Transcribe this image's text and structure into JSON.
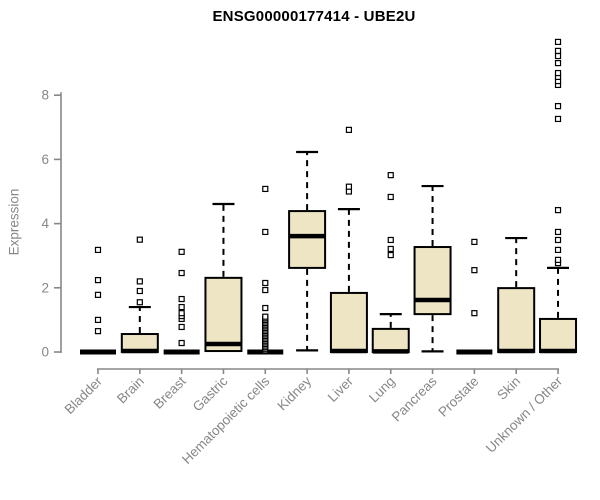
{
  "header": {
    "title": "ENSG00000177414 - UBE2U"
  },
  "chart_data": {
    "type": "boxplot",
    "title": "ENSG00000177414 - UBE2U",
    "xlabel": "",
    "ylabel": "Expression",
    "ylim": [
      0,
      9.7
    ],
    "yticks": [
      0,
      2,
      4,
      6,
      8
    ],
    "grid": false,
    "legend": "none",
    "colors": {
      "box_fill": "#EEE5C5",
      "box_border": "#000000",
      "median": "#000000",
      "axis": "#878787",
      "title": "#000000",
      "outlier_fill": "#ffffff"
    },
    "categories": [
      "Bladder",
      "Brain",
      "Breast",
      "Gastric",
      "Hematopoietic cells",
      "Kidney",
      "Liver",
      "Lung",
      "Pancreas",
      "Prostate",
      "Skin",
      "Unknown / Other"
    ],
    "series": [
      {
        "category": "Bladder",
        "collapsed": true,
        "min": 0,
        "q1": 0,
        "median": 0,
        "q3": 0,
        "max": 0,
        "outliers": [
          0.65,
          1.0,
          1.78,
          2.24,
          3.18
        ]
      },
      {
        "category": "Brain",
        "collapsed": false,
        "min": 0,
        "q1": 0,
        "median": 0.03,
        "q3": 0.56,
        "max": 1.4,
        "outliers": [
          1.55,
          1.9,
          2.2,
          3.5
        ]
      },
      {
        "category": "Breast",
        "collapsed": true,
        "min": 0,
        "q1": 0,
        "median": 0,
        "q3": 0,
        "max": 0,
        "outliers": [
          0.28,
          0.78,
          1.03,
          1.12,
          1.21,
          1.4,
          1.65,
          2.46,
          3.12
        ]
      },
      {
        "category": "Gastric",
        "collapsed": false,
        "min": 0.02,
        "q1": 0.03,
        "median": 0.25,
        "q3": 2.31,
        "max": 4.61,
        "outliers": []
      },
      {
        "category": "Hematopoietic cells",
        "collapsed": true,
        "min": 0,
        "q1": 0,
        "median": 0,
        "q3": 0,
        "max": 0,
        "outliers": [
          0.05,
          0.1,
          0.15,
          0.2,
          0.25,
          0.3,
          0.35,
          0.4,
          0.45,
          0.5,
          0.55,
          0.6,
          0.65,
          0.7,
          0.75,
          0.8,
          0.85,
          0.9,
          0.95,
          1.0,
          1.05,
          1.1,
          1.37,
          1.93,
          2.15,
          3.74,
          5.08
        ]
      },
      {
        "category": "Kidney",
        "collapsed": false,
        "min": 0.05,
        "q1": 2.62,
        "median": 3.61,
        "q3": 4.39,
        "max": 6.23,
        "outliers": []
      },
      {
        "category": "Liver",
        "collapsed": false,
        "min": 0,
        "q1": 0,
        "median": 0.03,
        "q3": 1.84,
        "max": 4.45,
        "outliers": [
          5.0,
          5.15,
          6.92
        ]
      },
      {
        "category": "Lung",
        "collapsed": false,
        "min": 0,
        "q1": 0,
        "median": 0.02,
        "q3": 0.72,
        "max": 1.18,
        "outliers": [
          3.02,
          3.21,
          3.49,
          4.83,
          5.51
        ]
      },
      {
        "category": "Pancreas",
        "collapsed": false,
        "min": 0.02,
        "q1": 1.18,
        "median": 1.62,
        "q3": 3.27,
        "max": 5.17,
        "outliers": []
      },
      {
        "category": "Prostate",
        "collapsed": true,
        "min": 0,
        "q1": 0,
        "median": 0,
        "q3": 0,
        "max": 0,
        "outliers": [
          1.21,
          2.55,
          3.43
        ]
      },
      {
        "category": "Skin",
        "collapsed": false,
        "min": 0,
        "q1": 0,
        "median": 0.03,
        "q3": 1.99,
        "max": 3.55,
        "outliers": []
      },
      {
        "category": "Unknown / Other",
        "collapsed": false,
        "min": 0,
        "q1": 0,
        "median": 0.03,
        "q3": 1.03,
        "max": 2.62,
        "outliers": [
          2.77,
          2.87,
          3.18,
          3.49,
          3.74,
          4.42,
          7.26,
          7.66,
          8.32,
          8.44,
          8.57,
          8.69,
          9.0,
          9.22,
          9.38,
          9.66
        ]
      }
    ]
  }
}
